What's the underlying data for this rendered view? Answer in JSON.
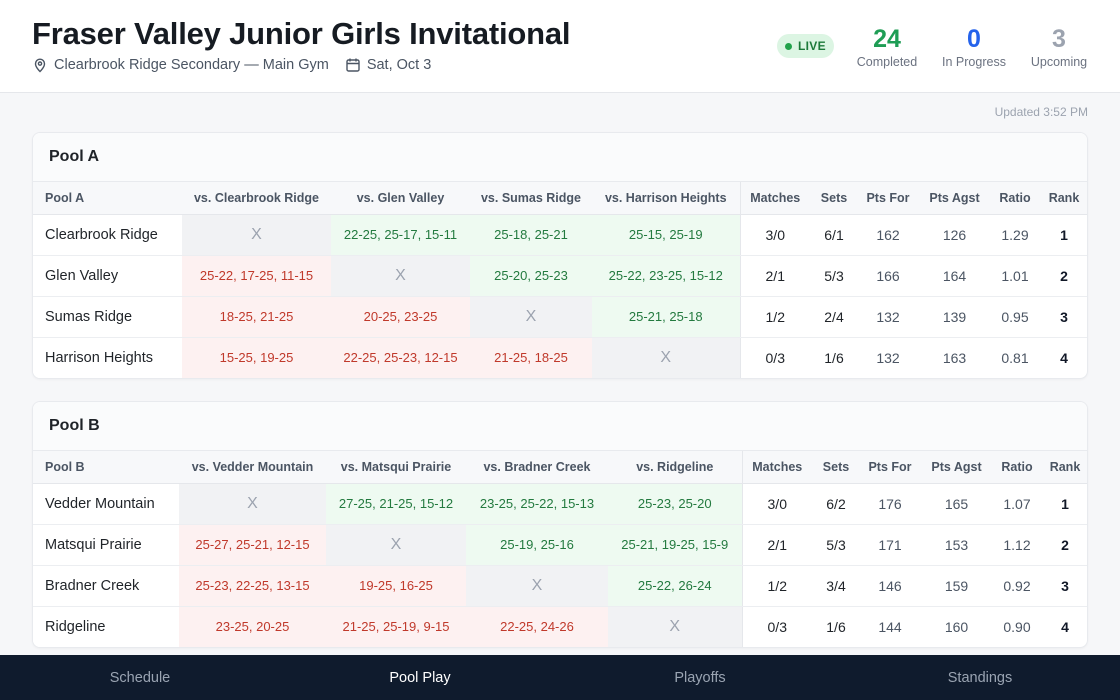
{
  "header": {
    "title": "Fraser Valley Junior Girls Invitational",
    "venue": "Clearbrook Ridge Secondary — Main Gym",
    "date": "Sat, Oct 3",
    "live_label": "LIVE",
    "stats": {
      "completed": {
        "value": "24",
        "label": "Completed"
      },
      "in_progress": {
        "value": "0",
        "label": "In Progress"
      },
      "upcoming": {
        "value": "3",
        "label": "Upcoming"
      }
    },
    "updated": "Updated 3:52 PM"
  },
  "colors": {
    "win": "#eefaf1",
    "loss": "#fdf1f1",
    "live": "#22a24b",
    "nav": "#0f1b2d"
  },
  "pools": [
    {
      "title": "Pool A",
      "head": [
        "Pool A",
        "vs. Clearbrook Ridge",
        "vs. Glen Valley",
        "vs. Sumas Ridge",
        "vs. Harrison Heights",
        "Matches",
        "Sets",
        "Pts For",
        "Pts Agst",
        "Ratio",
        "Rank"
      ],
      "rows": [
        {
          "team": "Clearbrook Ridge",
          "results": [
            {
              "t": "X",
              "k": "self"
            },
            {
              "t": "22-25, 25-17, 15-11",
              "k": "win"
            },
            {
              "t": "25-18, 25-21",
              "k": "win"
            },
            {
              "t": "25-15, 25-19",
              "k": "win"
            }
          ],
          "matches": "3/0",
          "sets": "6/1",
          "pf": "162",
          "pa": "126",
          "ratio": "1.29",
          "rank": "1"
        },
        {
          "team": "Glen Valley",
          "results": [
            {
              "t": "25-22, 17-25, 11-15",
              "k": "loss"
            },
            {
              "t": "X",
              "k": "self"
            },
            {
              "t": "25-20, 25-23",
              "k": "win"
            },
            {
              "t": "25-22, 23-25, 15-12",
              "k": "win"
            }
          ],
          "matches": "2/1",
          "sets": "5/3",
          "pf": "166",
          "pa": "164",
          "ratio": "1.01",
          "rank": "2"
        },
        {
          "team": "Sumas Ridge",
          "results": [
            {
              "t": "18-25, 21-25",
              "k": "loss"
            },
            {
              "t": "20-25, 23-25",
              "k": "loss"
            },
            {
              "t": "X",
              "k": "self"
            },
            {
              "t": "25-21, 25-18",
              "k": "win"
            }
          ],
          "matches": "1/2",
          "sets": "2/4",
          "pf": "132",
          "pa": "139",
          "ratio": "0.95",
          "rank": "3"
        },
        {
          "team": "Harrison Heights",
          "results": [
            {
              "t": "15-25, 19-25",
              "k": "loss"
            },
            {
              "t": "22-25, 25-23, 12-15",
              "k": "loss"
            },
            {
              "t": "21-25, 18-25",
              "k": "loss"
            },
            {
              "t": "X",
              "k": "self"
            }
          ],
          "matches": "0/3",
          "sets": "1/6",
          "pf": "132",
          "pa": "163",
          "ratio": "0.81",
          "rank": "4"
        }
      ]
    },
    {
      "title": "Pool B",
      "head": [
        "Pool B",
        "vs. Vedder Mountain",
        "vs. Matsqui Prairie",
        "vs. Bradner Creek",
        "vs. Ridgeline",
        "Matches",
        "Sets",
        "Pts For",
        "Pts Agst",
        "Ratio",
        "Rank"
      ],
      "rows": [
        {
          "team": "Vedder Mountain",
          "results": [
            {
              "t": "X",
              "k": "self"
            },
            {
              "t": "27-25, 21-25, 15-12",
              "k": "win"
            },
            {
              "t": "23-25, 25-22, 15-13",
              "k": "win"
            },
            {
              "t": "25-23, 25-20",
              "k": "win"
            }
          ],
          "matches": "3/0",
          "sets": "6/2",
          "pf": "176",
          "pa": "165",
          "ratio": "1.07",
          "rank": "1"
        },
        {
          "team": "Matsqui Prairie",
          "results": [
            {
              "t": "25-27, 25-21, 12-15",
              "k": "loss"
            },
            {
              "t": "X",
              "k": "self"
            },
            {
              "t": "25-19, 25-16",
              "k": "win"
            },
            {
              "t": "25-21, 19-25, 15-9",
              "k": "win"
            }
          ],
          "matches": "2/1",
          "sets": "5/3",
          "pf": "171",
          "pa": "153",
          "ratio": "1.12",
          "rank": "2"
        },
        {
          "team": "Bradner Creek",
          "results": [
            {
              "t": "25-23, 22-25, 13-15",
              "k": "loss"
            },
            {
              "t": "19-25, 16-25",
              "k": "loss"
            },
            {
              "t": "X",
              "k": "self"
            },
            {
              "t": "25-22, 26-24",
              "k": "win"
            }
          ],
          "matches": "1/2",
          "sets": "3/4",
          "pf": "146",
          "pa": "159",
          "ratio": "0.92",
          "rank": "3"
        },
        {
          "team": "Ridgeline",
          "results": [
            {
              "t": "23-25, 20-25",
              "k": "loss"
            },
            {
              "t": "21-25, 25-19, 9-15",
              "k": "loss"
            },
            {
              "t": "22-25, 24-26",
              "k": "loss"
            },
            {
              "t": "X",
              "k": "self"
            }
          ],
          "matches": "0/3",
          "sets": "1/6",
          "pf": "144",
          "pa": "160",
          "ratio": "0.90",
          "rank": "4"
        }
      ]
    }
  ],
  "nav": {
    "tabs": [
      "Schedule",
      "Pool Play",
      "Playoffs",
      "Standings"
    ],
    "active": "Pool Play"
  }
}
